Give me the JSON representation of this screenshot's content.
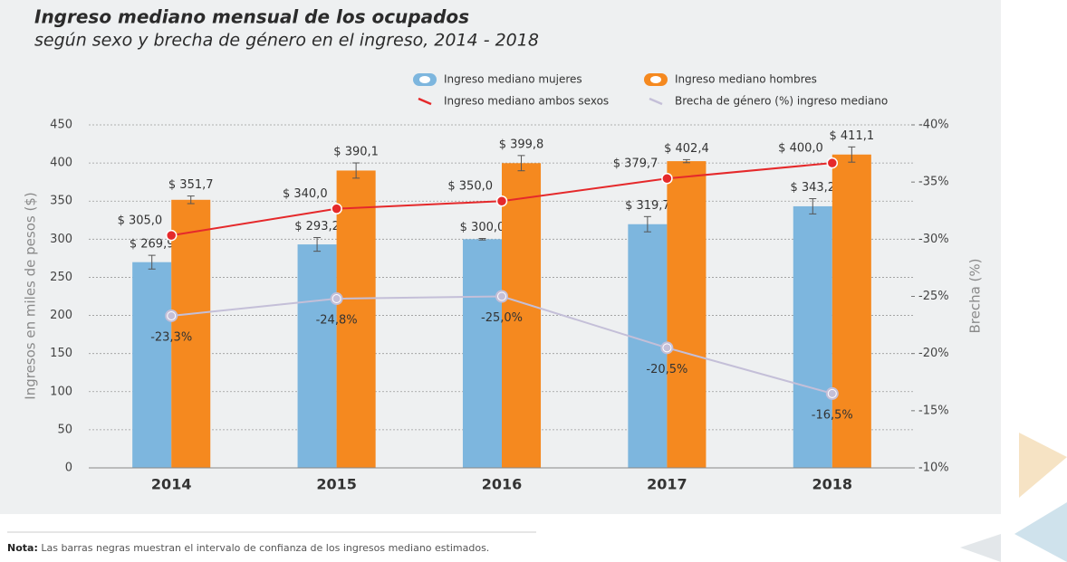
{
  "chart_data": {
    "type": "bar",
    "title": "Ingreso mediano mensual de los ocupados",
    "subtitle": "según sexo y brecha de género en el ingreso, 2014 - 2018",
    "y_label": "Ingresos en miles de pesos ($)",
    "y2_label": "Brecha (%)",
    "categories": [
      "2014",
      "2015",
      "2016",
      "2017",
      "2018"
    ],
    "ylim": [
      0,
      450
    ],
    "yticks": [
      0,
      50,
      100,
      150,
      200,
      250,
      300,
      350,
      400,
      450
    ],
    "y2lim": [
      -10,
      -40
    ],
    "y2ticks": [
      {
        "value": -10,
        "label": "-10%"
      },
      {
        "value": -15,
        "label": "-15%"
      },
      {
        "value": -20,
        "label": "-20%"
      },
      {
        "value": -25,
        "label": "-25%"
      },
      {
        "value": -30,
        "label": "-30%"
      },
      {
        "value": -35,
        "label": "-35%"
      },
      {
        "value": -40,
        "label": "-40%"
      }
    ],
    "grid": true,
    "series": [
      {
        "name": "Ingreso mediano mujeres",
        "type": "bar",
        "color": "#7db6de",
        "values": [
          269.9,
          293.2,
          300.0,
          319.7,
          343.2
        ],
        "value_labels": [
          "$ 269,9",
          "$ 293,2",
          "$ 300,0",
          "$ 319,7",
          "$ 343,2"
        ],
        "errors": [
          9,
          9,
          1,
          10,
          10
        ]
      },
      {
        "name": "Ingreso mediano hombres",
        "type": "bar",
        "color": "#f5891f",
        "values": [
          351.7,
          390.1,
          399.8,
          402.4,
          411.1
        ],
        "value_labels": [
          "$ 351,7",
          "$ 390,1",
          "$ 399,8",
          "$ 402,4",
          "$ 411,1"
        ],
        "errors": [
          5,
          10,
          10,
          2,
          10
        ]
      },
      {
        "name": "Ingreso mediano ambos sexos",
        "type": "line",
        "color": "#e5292b",
        "values": [
          305.0,
          340.0,
          350.0,
          379.7,
          400.0
        ],
        "value_labels": [
          "$ 305,0",
          "$ 340,0",
          "$ 350,0",
          "$ 379,7",
          "$ 400,0"
        ]
      },
      {
        "name": "Brecha de género (%) ingreso mediano",
        "type": "line",
        "axis": "y2",
        "color": "#c4bfd8",
        "values": [
          -23.3,
          -24.8,
          -25.0,
          -20.5,
          -16.5
        ],
        "value_labels": [
          "-23,3%",
          "-24,8%",
          "-25,0%",
          "-20,5%",
          "-16,5%"
        ]
      }
    ],
    "note": {
      "label": "Nota:",
      "text": "Las barras negras muestran el intervalo de confianza de los ingresos mediano estimados."
    }
  }
}
